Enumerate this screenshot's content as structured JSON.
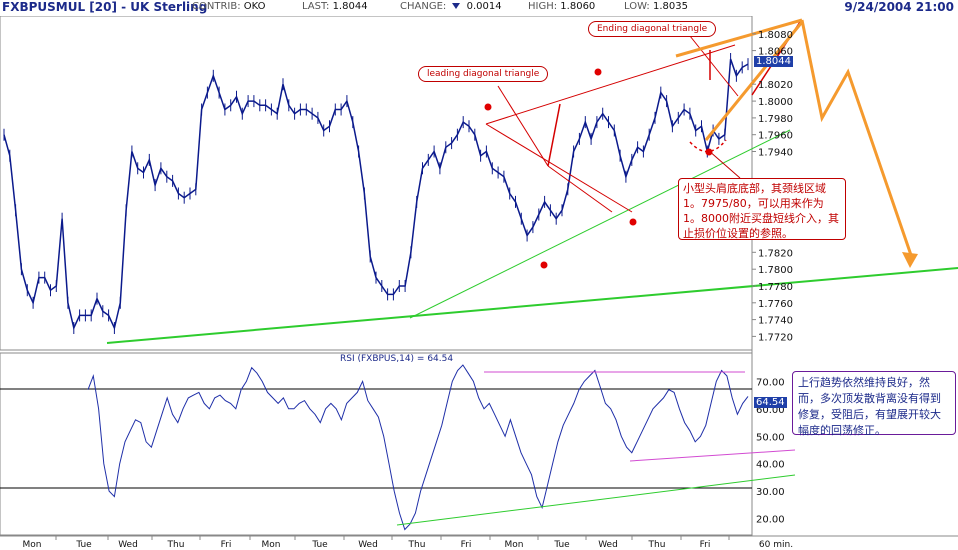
{
  "header": {
    "title": "FXBPUSMUL [20] - UK Sterling",
    "contrib_label": "CONTRIB:",
    "contrib_value": "OKO",
    "last_label": "LAST:",
    "last_value": "1.8044",
    "change_label": "CHANGE:",
    "change_value": "0.0014",
    "high_label": "HIGH:",
    "high_value": "1.8060",
    "low_label": "LOW:",
    "low_value": "1.8035",
    "datetime": "9/24/2004 21:00"
  },
  "annotations": {
    "ending_triangle": "Ending diagonal triangle",
    "leading_triangle": "leading diagonal triangle",
    "hs_note": "小型头肩底底部，其颈线区域1。7975/80，可以用来作为1。8000附近买盘短线介入，其止损价位设置的参照。",
    "rsi_note": "上行趋势依然维持良好，然而，多次顶发散背离没有得到修复，受阻后，有望展开较大幅度的回荡修正。"
  },
  "colors": {
    "price": "#0b1a8c",
    "rsi": "#1f2fa8",
    "trend_green": "#2ecc2e",
    "triangle_red": "#d40000",
    "forecast_orange": "#f59a2e",
    "divergence_magenta": "#d24bd2"
  },
  "chart_data": [
    {
      "type": "line",
      "title": "",
      "series": [
        {
          "values": [
            1.796,
            1.7935,
            1.787,
            1.78,
            1.7775,
            1.776,
            1.779,
            1.779,
            1.7775,
            1.778,
            1.786,
            1.776,
            1.773,
            1.7745,
            1.7745,
            1.7745,
            1.7765,
            1.775,
            1.7745,
            1.773,
            1.776,
            1.787,
            1.794,
            1.792,
            1.7915,
            1.793,
            1.79,
            1.792,
            1.791,
            1.7905,
            1.789,
            1.7885,
            1.789,
            1.7895,
            1.799,
            1.801,
            1.803,
            1.801,
            1.799,
            1.7995,
            1.8005,
            1.7985,
            1.8,
            1.8,
            1.7995,
            1.7995,
            1.799,
            1.7985,
            1.802,
            1.7995,
            1.7985,
            1.799,
            1.799,
            1.7985,
            1.798,
            1.7965,
            1.797,
            1.799,
            1.799,
            1.8,
            1.7975,
            1.794,
            1.789,
            1.7815,
            1.779,
            1.778,
            1.777,
            1.777,
            1.778,
            1.778,
            1.782,
            1.788,
            1.792,
            1.793,
            1.794,
            1.792,
            1.7945,
            1.795,
            1.796,
            1.7975,
            1.797,
            1.796,
            1.7935,
            1.794,
            1.792,
            1.7915,
            1.791,
            1.789,
            1.788,
            1.786,
            1.784,
            1.785,
            1.7865,
            1.788,
            1.787,
            1.786,
            1.787,
            1.7895,
            1.794,
            1.7955,
            1.7975,
            1.7955,
            1.7975,
            1.7985,
            1.7975,
            1.7965,
            1.7935,
            1.791,
            1.793,
            1.7945,
            1.794,
            1.796,
            1.798,
            1.801,
            1.8,
            1.797,
            1.798,
            1.799,
            1.7985,
            1.7965,
            1.797,
            1.794,
            1.7965,
            1.7955,
            1.796,
            1.805,
            1.803,
            1.804,
            1.8044
          ]
        }
      ],
      "x_ticks": [
        "Mon",
        "Tue",
        "Wed",
        "Thu",
        "Fri",
        "Mon",
        "Tue",
        "Wed",
        "Thu",
        "Fri",
        "Mon",
        "Tue",
        "Wed",
        "Thu",
        "Fri",
        "60 min."
      ],
      "y_ticks": [
        1.772,
        1.774,
        1.776,
        1.778,
        1.78,
        1.782,
        1.794,
        1.796,
        1.798,
        1.8,
        1.802,
        1.806,
        1.808
      ],
      "ylim": [
        1.7705,
        1.81
      ],
      "grid": false
    },
    {
      "type": "line",
      "title": "RSI (FXBPUS,14) = 64.54",
      "series": [
        {
          "values": [
            67,
            72,
            60,
            40,
            30,
            28,
            40,
            48,
            52,
            56,
            55,
            48,
            46,
            52,
            58,
            64,
            58,
            55,
            60,
            64,
            65,
            66,
            62,
            60,
            64,
            65,
            63,
            62,
            60,
            67,
            70,
            75,
            73,
            70,
            66,
            64,
            62,
            64,
            60,
            60,
            62,
            63,
            60,
            58,
            55,
            60,
            62,
            60,
            56,
            62,
            64,
            66,
            70,
            63,
            60,
            57,
            50,
            40,
            30,
            22,
            16,
            18,
            22,
            30,
            36,
            42,
            48,
            54,
            62,
            70,
            74,
            76,
            73,
            70,
            64,
            60,
            62,
            58,
            54,
            50,
            56,
            50,
            44,
            40,
            36,
            28,
            24,
            32,
            40,
            48,
            54,
            58,
            62,
            67,
            70,
            72,
            74,
            68,
            62,
            60,
            56,
            50,
            46,
            44,
            48,
            52,
            56,
            60,
            62,
            64,
            67,
            66,
            60,
            55,
            52,
            48,
            50,
            54,
            62,
            70,
            74,
            72,
            64,
            58,
            62,
            64.54
          ]
        }
      ],
      "y_ticks": [
        20.0,
        30.0,
        40.0,
        50.0,
        60.0,
        70.0
      ],
      "ylim": [
        14,
        80
      ],
      "grid": false
    }
  ]
}
